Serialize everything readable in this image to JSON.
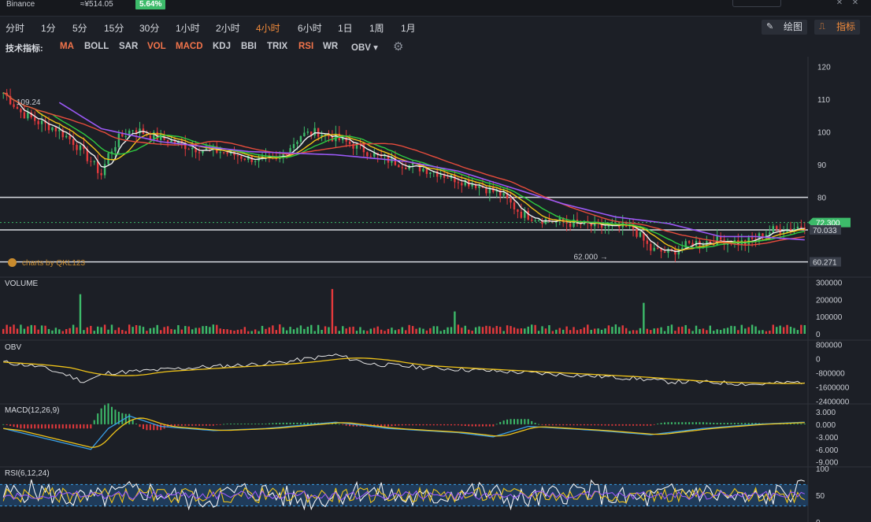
{
  "header": {
    "exchange": "Binance",
    "price_cny": "≈¥514.05",
    "change": "5.64%"
  },
  "timeframes": [
    "分时",
    "1分",
    "5分",
    "15分",
    "30分",
    "1小时",
    "2小时",
    "4小时",
    "6小时",
    "1日",
    "1周",
    "1月"
  ],
  "active_timeframe": "4小时",
  "toolbar": {
    "draw_label": "绘图",
    "indicator_label": "指标"
  },
  "indicators": {
    "label": "技术指标:",
    "items": [
      "MA",
      "BOLL",
      "SAR",
      "VOL",
      "MACD",
      "KDJ",
      "BBI",
      "TRIX",
      "RSI",
      "WR",
      "OBV ▾"
    ],
    "active": [
      "MA",
      "VOL",
      "MACD",
      "RSI"
    ]
  },
  "watermark": "charts by QKL123",
  "colors": {
    "up": "#3dbb6a",
    "down": "#e4393c",
    "ma5": "#f2f2f2",
    "ma10": "#f0c419",
    "ma20": "#2ecc40",
    "ma30": "#e74c3c",
    "ma60": "#9b59f6",
    "background": "#1c1f26",
    "accent": "#f28b3b"
  },
  "chart_data": [
    {
      "type": "candlestick",
      "panel": "price",
      "yticks": [
        120,
        110,
        100,
        90,
        80
      ],
      "ylim": [
        58,
        123
      ],
      "hlines": [
        80,
        70.033,
        60.271
      ],
      "current_price": "72.300",
      "current_price_value": 72.3,
      "price_labels": [
        "70.033",
        "60.271"
      ],
      "annotations": [
        {
          "text": "109.24",
          "x": 2,
          "y": 109.24
        },
        {
          "text": "62.000 →",
          "x": 171,
          "y": 62.0
        }
      ],
      "close_path": [
        [
          0,
          112
        ],
        [
          5,
          106
        ],
        [
          10,
          103
        ],
        [
          15,
          101
        ],
        [
          20,
          97
        ],
        [
          25,
          91
        ],
        [
          28,
          87
        ],
        [
          30,
          93
        ],
        [
          33,
          98
        ],
        [
          37,
          101
        ],
        [
          42,
          99
        ],
        [
          48,
          97
        ],
        [
          55,
          95
        ],
        [
          62,
          94
        ],
        [
          70,
          92
        ],
        [
          78,
          91
        ],
        [
          85,
          99
        ],
        [
          90,
          100
        ],
        [
          95,
          98
        ],
        [
          100,
          96
        ],
        [
          108,
          92
        ],
        [
          115,
          90
        ],
        [
          123,
          88
        ],
        [
          128,
          86
        ],
        [
          135,
          84
        ],
        [
          142,
          81
        ],
        [
          148,
          75
        ],
        [
          155,
          73
        ],
        [
          163,
          72
        ],
        [
          170,
          71
        ],
        [
          180,
          70.5
        ],
        [
          185,
          64
        ],
        [
          190,
          63
        ],
        [
          197,
          66
        ],
        [
          205,
          67
        ],
        [
          212,
          66
        ],
        [
          220,
          70
        ],
        [
          225,
          70.5
        ],
        [
          229,
          71.5
        ]
      ],
      "ma60_path": [
        [
          16,
          109
        ],
        [
          28,
          101
        ],
        [
          45,
          97
        ],
        [
          70,
          94
        ],
        [
          95,
          93
        ],
        [
          115,
          91
        ],
        [
          130,
          88
        ],
        [
          145,
          83
        ],
        [
          160,
          78
        ],
        [
          175,
          74
        ],
        [
          190,
          72
        ],
        [
          205,
          68
        ],
        [
          215,
          68
        ],
        [
          229,
          67
        ]
      ],
      "n": 230
    },
    {
      "type": "bar",
      "panel": "volume",
      "title": "VOLUME",
      "yticks": [
        "300000",
        "200000",
        "100000",
        "0"
      ],
      "ytick_values": [
        300000,
        200000,
        100000,
        0
      ],
      "ylim": [
        0,
        320000
      ],
      "spikes": [
        {
          "x": 22,
          "value": 230000
        },
        {
          "x": 94,
          "value": 260000
        },
        {
          "x": 129,
          "value": 130000
        },
        {
          "x": 183,
          "value": 180000
        }
      ]
    },
    {
      "type": "line",
      "panel": "obv",
      "title": "OBV",
      "yticks": [
        "800000",
        "0",
        "-800000",
        "-1600000",
        "-2400000"
      ],
      "ytick_values": [
        800000,
        0,
        -800000,
        -1600000,
        -2400000
      ],
      "ylim": [
        -2500000,
        900000
      ],
      "path": [
        [
          0,
          -200000
        ],
        [
          10,
          -450000
        ],
        [
          18,
          -900000
        ],
        [
          23,
          -1300000
        ],
        [
          30,
          -800000
        ],
        [
          40,
          -700000
        ],
        [
          55,
          -500000
        ],
        [
          70,
          -350000
        ],
        [
          80,
          -200000
        ],
        [
          95,
          200000
        ],
        [
          105,
          -300000
        ],
        [
          120,
          -500000
        ],
        [
          140,
          -700000
        ],
        [
          160,
          -900000
        ],
        [
          180,
          -1100000
        ],
        [
          190,
          -1300000
        ],
        [
          205,
          -1350000
        ],
        [
          215,
          -1450000
        ],
        [
          229,
          -1300000
        ]
      ]
    },
    {
      "type": "line",
      "panel": "macd",
      "title": "MACD(12,26,9)",
      "yticks": [
        "3.000",
        "0.000",
        "-3.000",
        "-6.000",
        "-9.000"
      ],
      "ytick_values": [
        3,
        0,
        -3,
        -6,
        -9
      ],
      "ylim": [
        -10,
        4.5
      ],
      "path": [
        [
          0,
          -1
        ],
        [
          10,
          -3
        ],
        [
          20,
          -5
        ],
        [
          25,
          -6
        ],
        [
          30,
          -1
        ],
        [
          36,
          2
        ],
        [
          45,
          -0.5
        ],
        [
          60,
          -1.5
        ],
        [
          75,
          -1
        ],
        [
          95,
          0.5
        ],
        [
          110,
          -1
        ],
        [
          130,
          -2
        ],
        [
          140,
          -3
        ],
        [
          150,
          -0.5
        ],
        [
          170,
          -1.5
        ],
        [
          185,
          -2.5
        ],
        [
          200,
          -1
        ],
        [
          215,
          0
        ],
        [
          229,
          0.5
        ]
      ]
    },
    {
      "type": "line",
      "panel": "rsi",
      "title": "RSI(6,12,24)",
      "yticks": [
        "100",
        "50",
        "0"
      ],
      "ytick_values": [
        100,
        50,
        0
      ],
      "ylim": [
        0,
        100
      ],
      "band": [
        30,
        70
      ]
    }
  ]
}
